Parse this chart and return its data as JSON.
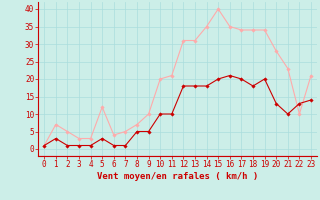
{
  "x": [
    0,
    1,
    2,
    3,
    4,
    5,
    6,
    7,
    8,
    9,
    10,
    11,
    12,
    13,
    14,
    15,
    16,
    17,
    18,
    19,
    20,
    21,
    22,
    23
  ],
  "vent_moyen": [
    1,
    3,
    1,
    1,
    1,
    3,
    1,
    1,
    5,
    5,
    10,
    10,
    18,
    18,
    18,
    20,
    21,
    20,
    18,
    20,
    13,
    10,
    13,
    14
  ],
  "rafales": [
    1,
    7,
    5,
    3,
    3,
    12,
    4,
    5,
    7,
    10,
    20,
    21,
    31,
    31,
    35,
    40,
    35,
    34,
    34,
    34,
    28,
    23,
    10,
    21
  ],
  "color_moyen": "#cc0000",
  "color_rafales": "#ffaaaa",
  "bg_color": "#cceee8",
  "grid_color": "#aadddd",
  "xlabel": "Vent moyen/en rafales ( km/h )",
  "xlabel_color": "#cc0000",
  "xlabel_fontsize": 6.5,
  "tick_color": "#cc0000",
  "tick_fontsize": 5.5,
  "ylim": [
    -2,
    42
  ],
  "yticks": [
    0,
    5,
    10,
    15,
    20,
    25,
    30,
    35,
    40
  ],
  "marker": "D",
  "marker_size": 1.8,
  "linewidth": 0.8
}
